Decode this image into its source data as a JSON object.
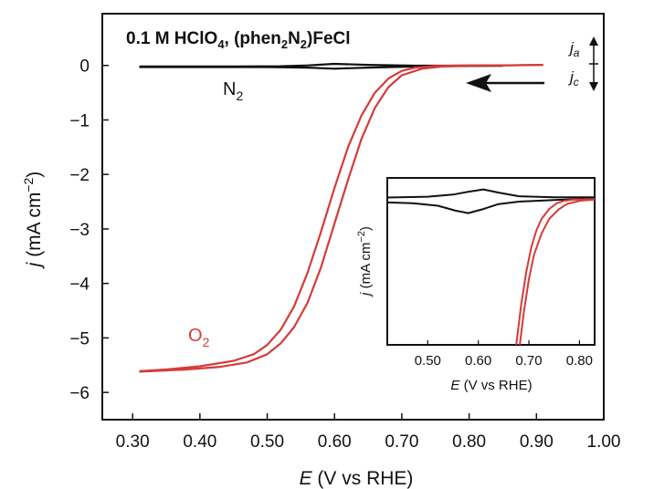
{
  "chart_data": {
    "type": "line",
    "title": "0.1 M HClO4, (phen2N2)FeCl",
    "title_parts": {
      "a": "0.1 M HClO",
      "a_sub": "4",
      "b": ", (phen",
      "b_sub": "2",
      "c": "N",
      "c_sub": "2",
      "d": ")FeCl"
    },
    "xlabel": {
      "var": "E",
      "unit": " (V vs RHE)"
    },
    "ylabel": {
      "var": "j",
      "unit": " (mA cm",
      "sup": "−2",
      "close": ")"
    },
    "xlim": [
      0.255,
      1.0
    ],
    "ylim": [
      -6.5,
      0.95
    ],
    "xticks": [
      "0.30",
      "0.40",
      "0.50",
      "0.60",
      "0.70",
      "0.80",
      "0.90",
      "1.00"
    ],
    "xtick_values": [
      0.3,
      0.4,
      0.5,
      0.6,
      0.7,
      0.8,
      0.9,
      1.0
    ],
    "yticks": [
      "0",
      "−1",
      "−2",
      "−3",
      "−4",
      "−5",
      "−6"
    ],
    "ytick_values": [
      0,
      -1,
      -2,
      -3,
      -4,
      -5,
      -6
    ],
    "series": [
      {
        "name": "N2",
        "label_main": "N",
        "label_sub": "2",
        "color": "#111111",
        "forward": [
          [
            0.31,
            -0.02
          ],
          [
            0.45,
            -0.02
          ],
          [
            0.52,
            -0.015
          ],
          [
            0.56,
            0.0
          ],
          [
            0.6,
            0.03
          ],
          [
            0.65,
            0.01
          ],
          [
            0.72,
            -0.005
          ],
          [
            0.8,
            -0.005
          ],
          [
            0.85,
            -0.005
          ]
        ],
        "backward": [
          [
            0.85,
            -0.005
          ],
          [
            0.8,
            -0.01
          ],
          [
            0.72,
            -0.02
          ],
          [
            0.65,
            -0.04
          ],
          [
            0.6,
            -0.06
          ],
          [
            0.56,
            -0.04
          ],
          [
            0.5,
            -0.03
          ],
          [
            0.4,
            -0.03
          ],
          [
            0.31,
            -0.03
          ]
        ]
      },
      {
        "name": "O2",
        "label_main": "O",
        "label_sub": "2",
        "color": "#d63a3a",
        "forward": [
          [
            0.31,
            -5.61
          ],
          [
            0.35,
            -5.58
          ],
          [
            0.4,
            -5.52
          ],
          [
            0.45,
            -5.42
          ],
          [
            0.48,
            -5.3
          ],
          [
            0.5,
            -5.13
          ],
          [
            0.52,
            -4.85
          ],
          [
            0.54,
            -4.42
          ],
          [
            0.56,
            -3.8
          ],
          [
            0.58,
            -3.05
          ],
          [
            0.6,
            -2.25
          ],
          [
            0.62,
            -1.5
          ],
          [
            0.64,
            -0.92
          ],
          [
            0.66,
            -0.5
          ],
          [
            0.68,
            -0.24
          ],
          [
            0.7,
            -0.1
          ],
          [
            0.72,
            -0.04
          ],
          [
            0.75,
            -0.01
          ],
          [
            0.8,
            0.0
          ],
          [
            0.85,
            0.0
          ],
          [
            0.91,
            0.01
          ]
        ],
        "backward": [
          [
            0.91,
            0.01
          ],
          [
            0.85,
            0.0
          ],
          [
            0.8,
            -0.005
          ],
          [
            0.76,
            -0.02
          ],
          [
            0.73,
            -0.06
          ],
          [
            0.7,
            -0.18
          ],
          [
            0.68,
            -0.4
          ],
          [
            0.66,
            -0.78
          ],
          [
            0.64,
            -1.35
          ],
          [
            0.62,
            -2.1
          ],
          [
            0.6,
            -2.9
          ],
          [
            0.58,
            -3.7
          ],
          [
            0.56,
            -4.35
          ],
          [
            0.54,
            -4.8
          ],
          [
            0.52,
            -5.1
          ],
          [
            0.5,
            -5.3
          ],
          [
            0.47,
            -5.45
          ],
          [
            0.43,
            -5.53
          ],
          [
            0.38,
            -5.58
          ],
          [
            0.31,
            -5.62
          ]
        ]
      }
    ],
    "scan_direction_arrow": "leftward",
    "current_labels": {
      "anodic": "a",
      "cathodic": "c",
      "var": "j"
    },
    "inset": {
      "xlabel": {
        "var": "E",
        "unit": " (V vs RHE)"
      },
      "ylabel": {
        "var": "j",
        "unit": " (mA cm",
        "sup": "−2",
        "close": ")"
      },
      "xlim": [
        0.42,
        0.83
      ],
      "ylim": [
        -0.9,
        0.12
      ],
      "xticks": [
        "0.50",
        "0.60",
        "0.70",
        "0.80"
      ],
      "xtick_values": [
        0.5,
        0.6,
        0.7,
        0.8
      ],
      "series": [
        {
          "name": "N2",
          "color": "#111111",
          "forward": [
            [
              0.42,
              0.0
            ],
            [
              0.5,
              0.005
            ],
            [
              0.55,
              0.018
            ],
            [
              0.58,
              0.035
            ],
            [
              0.61,
              0.05
            ],
            [
              0.64,
              0.03
            ],
            [
              0.68,
              0.008
            ],
            [
              0.75,
              0.002
            ],
            [
              0.83,
              0.002
            ]
          ],
          "backward": [
            [
              0.83,
              -0.005
            ],
            [
              0.75,
              -0.015
            ],
            [
              0.68,
              -0.025
            ],
            [
              0.64,
              -0.04
            ],
            [
              0.61,
              -0.07
            ],
            [
              0.58,
              -0.095
            ],
            [
              0.555,
              -0.08
            ],
            [
              0.52,
              -0.05
            ],
            [
              0.47,
              -0.035
            ],
            [
              0.42,
              -0.03
            ]
          ]
        },
        {
          "name": "O2",
          "color": "#d63a3a",
          "forward": [
            [
              0.675,
              -0.9
            ],
            [
              0.685,
              -0.65
            ],
            [
              0.695,
              -0.45
            ],
            [
              0.705,
              -0.3
            ],
            [
              0.715,
              -0.2
            ],
            [
              0.725,
              -0.13
            ],
            [
              0.74,
              -0.07
            ],
            [
              0.755,
              -0.035
            ],
            [
              0.77,
              -0.02
            ],
            [
              0.79,
              -0.012
            ],
            [
              0.83,
              -0.01
            ]
          ],
          "backward": [
            [
              0.83,
              -0.012
            ],
            [
              0.8,
              -0.02
            ],
            [
              0.775,
              -0.04
            ],
            [
              0.76,
              -0.07
            ],
            [
              0.74,
              -0.13
            ],
            [
              0.725,
              -0.22
            ],
            [
              0.71,
              -0.35
            ],
            [
              0.7,
              -0.5
            ],
            [
              0.69,
              -0.7
            ],
            [
              0.682,
              -0.9
            ]
          ]
        }
      ]
    }
  }
}
